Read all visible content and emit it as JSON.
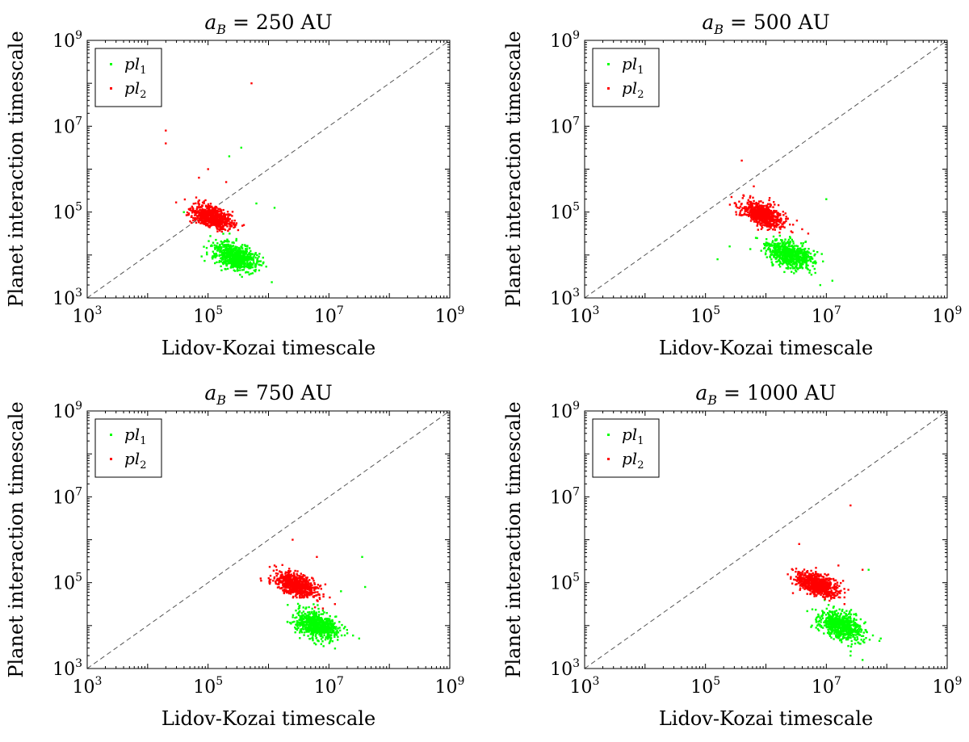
{
  "figure": {
    "axis_colors": {
      "pl1": "#00ff00",
      "pl2": "#ff0000",
      "diagonal": "#555555",
      "frame": "#000000"
    }
  },
  "chart_data": [
    {
      "type": "scatter",
      "title": "a_B = 250 AU",
      "title_parts": {
        "var": "a",
        "sub": "B",
        "eq": " = ",
        "value": "250 AU"
      },
      "xlabel": "Lidov-Kozai timescale",
      "ylabel": "Planet interaction timescale",
      "xscale": "log",
      "yscale": "log",
      "xlim": [
        1000,
        1000000000
      ],
      "ylim": [
        1000,
        1000000000
      ],
      "xticks": [
        {
          "base": "10",
          "exp": "3"
        },
        {
          "base": "10",
          "exp": "5"
        },
        {
          "base": "10",
          "exp": "7"
        },
        {
          "base": "10",
          "exp": "9"
        }
      ],
      "yticks": [
        {
          "base": "10",
          "exp": "3"
        },
        {
          "base": "10",
          "exp": "5"
        },
        {
          "base": "10",
          "exp": "7"
        },
        {
          "base": "10",
          "exp": "9"
        }
      ],
      "reference_line": "y = x",
      "legend": [
        {
          "text": "pl",
          "sub": "1",
          "color": "#00ff00"
        },
        {
          "text": "pl",
          "sub": "2",
          "color": "#ff0000"
        }
      ],
      "series": [
        {
          "name": "pl1",
          "color": "#00ff00",
          "cluster": {
            "center_log": [
              5.45,
              3.95
            ],
            "spread_log": [
              0.18,
              0.15
            ],
            "slope": -0.35,
            "count": 700
          },
          "outliers_log": [
            [
              5.55,
              6.5
            ],
            [
              5.35,
              6.3
            ],
            [
              6.1,
              5.1
            ],
            [
              4.9,
              4.8
            ],
            [
              4.6,
              5.0
            ],
            [
              5.8,
              5.2
            ]
          ]
        },
        {
          "name": "pl2",
          "color": "#ff0000",
          "cluster": {
            "center_log": [
              5.05,
              4.9
            ],
            "spread_log": [
              0.17,
              0.12
            ],
            "slope": -0.4,
            "count": 700
          },
          "outliers_log": [
            [
              5.72,
              8.0
            ],
            [
              4.3,
              6.9
            ],
            [
              4.3,
              6.6
            ],
            [
              5.0,
              6.0
            ],
            [
              4.85,
              5.8
            ],
            [
              5.3,
              5.7
            ]
          ]
        }
      ]
    },
    {
      "type": "scatter",
      "title": "a_B = 500 AU",
      "title_parts": {
        "var": "a",
        "sub": "B",
        "eq": " = ",
        "value": "500 AU"
      },
      "xlabel": "Lidov-Kozai timescale",
      "ylabel": "Planet interaction timescale",
      "xscale": "log",
      "yscale": "log",
      "xlim": [
        1000,
        1000000000
      ],
      "ylim": [
        1000,
        1000000000
      ],
      "xticks": [
        {
          "base": "10",
          "exp": "3"
        },
        {
          "base": "10",
          "exp": "5"
        },
        {
          "base": "10",
          "exp": "7"
        },
        {
          "base": "10",
          "exp": "9"
        }
      ],
      "yticks": [
        {
          "base": "10",
          "exp": "3"
        },
        {
          "base": "10",
          "exp": "5"
        },
        {
          "base": "10",
          "exp": "7"
        },
        {
          "base": "10",
          "exp": "9"
        }
      ],
      "reference_line": "y = x",
      "legend": [
        {
          "text": "pl",
          "sub": "1",
          "color": "#00ff00"
        },
        {
          "text": "pl",
          "sub": "2",
          "color": "#ff0000"
        }
      ],
      "series": [
        {
          "name": "pl1",
          "color": "#00ff00",
          "cluster": {
            "center_log": [
              6.4,
              4.0
            ],
            "spread_log": [
              0.18,
              0.15
            ],
            "slope": -0.35,
            "count": 700
          },
          "outliers_log": [
            [
              5.2,
              3.9
            ],
            [
              5.4,
              4.2
            ],
            [
              7.1,
              3.4
            ],
            [
              7.0,
              5.3
            ],
            [
              6.9,
              3.3
            ]
          ]
        },
        {
          "name": "pl2",
          "color": "#ff0000",
          "cluster": {
            "center_log": [
              5.95,
              4.95
            ],
            "spread_log": [
              0.17,
              0.12
            ],
            "slope": -0.4,
            "count": 700
          },
          "outliers_log": [
            [
              5.6,
              6.2
            ],
            [
              5.8,
              5.6
            ],
            [
              6.6,
              4.6
            ],
            [
              6.7,
              4.5
            ]
          ]
        }
      ]
    },
    {
      "type": "scatter",
      "title": "a_B = 750 AU",
      "title_parts": {
        "var": "a",
        "sub": "B",
        "eq": " = ",
        "value": "750 AU"
      },
      "xlabel": "Lidov-Kozai timescale",
      "ylabel": "Planet interaction timescale",
      "xscale": "log",
      "yscale": "log",
      "xlim": [
        1000,
        1000000000
      ],
      "ylim": [
        1000,
        1000000000
      ],
      "xticks": [
        {
          "base": "10",
          "exp": "3"
        },
        {
          "base": "10",
          "exp": "5"
        },
        {
          "base": "10",
          "exp": "7"
        },
        {
          "base": "10",
          "exp": "9"
        }
      ],
      "yticks": [
        {
          "base": "10",
          "exp": "3"
        },
        {
          "base": "10",
          "exp": "5"
        },
        {
          "base": "10",
          "exp": "7"
        },
        {
          "base": "10",
          "exp": "9"
        }
      ],
      "reference_line": "y = x",
      "legend": [
        {
          "text": "pl",
          "sub": "1",
          "color": "#00ff00"
        },
        {
          "text": "pl",
          "sub": "2",
          "color": "#ff0000"
        }
      ],
      "series": [
        {
          "name": "pl1",
          "color": "#00ff00",
          "cluster": {
            "center_log": [
              6.8,
              4.0
            ],
            "spread_log": [
              0.18,
              0.15
            ],
            "slope": -0.35,
            "count": 700
          },
          "outliers_log": [
            [
              7.55,
              5.6
            ],
            [
              7.6,
              4.9
            ],
            [
              7.5,
              3.7
            ],
            [
              7.2,
              4.8
            ]
          ]
        },
        {
          "name": "pl2",
          "color": "#ff0000",
          "cluster": {
            "center_log": [
              6.45,
              4.95
            ],
            "spread_log": [
              0.17,
              0.12
            ],
            "slope": -0.4,
            "count": 700
          },
          "outliers_log": [
            [
              6.4,
              6.0
            ],
            [
              6.8,
              5.6
            ],
            [
              7.1,
              4.5
            ],
            [
              6.9,
              4.4
            ],
            [
              6.1,
              5.4
            ]
          ]
        }
      ]
    },
    {
      "type": "scatter",
      "title": "a_B = 1000 AU",
      "title_parts": {
        "var": "a",
        "sub": "B",
        "eq": " = ",
        "value": "1000 AU"
      },
      "xlabel": "Lidov-Kozai timescale",
      "ylabel": "Planet interaction timescale",
      "xscale": "log",
      "yscale": "log",
      "xlim": [
        1000,
        1000000000
      ],
      "ylim": [
        1000,
        1000000000
      ],
      "xticks": [
        {
          "base": "10",
          "exp": "3"
        },
        {
          "base": "10",
          "exp": "5"
        },
        {
          "base": "10",
          "exp": "7"
        },
        {
          "base": "10",
          "exp": "9"
        }
      ],
      "yticks": [
        {
          "base": "10",
          "exp": "3"
        },
        {
          "base": "10",
          "exp": "5"
        },
        {
          "base": "10",
          "exp": "7"
        },
        {
          "base": "10",
          "exp": "9"
        }
      ],
      "reference_line": "y = x",
      "legend": [
        {
          "text": "pl",
          "sub": "1",
          "color": "#00ff00"
        },
        {
          "text": "pl",
          "sub": "2",
          "color": "#ff0000"
        }
      ],
      "series": [
        {
          "name": "pl1",
          "color": "#00ff00",
          "cluster": {
            "center_log": [
              7.25,
              4.0
            ],
            "spread_log": [
              0.18,
              0.15
            ],
            "slope": -0.35,
            "count": 700
          },
          "outliers_log": [
            [
              7.9,
              3.7
            ],
            [
              7.7,
              5.3
            ],
            [
              7.4,
              3.3
            ],
            [
              7.6,
              3.2
            ]
          ]
        },
        {
          "name": "pl2",
          "color": "#ff0000",
          "cluster": {
            "center_log": [
              6.85,
              4.95
            ],
            "spread_log": [
              0.17,
              0.12
            ],
            "slope": -0.4,
            "count": 700
          },
          "outliers_log": [
            [
              7.4,
              6.8
            ],
            [
              6.55,
              5.9
            ],
            [
              7.2,
              5.4
            ],
            [
              7.3,
              4.5
            ],
            [
              7.6,
              5.3
            ]
          ]
        }
      ]
    }
  ]
}
